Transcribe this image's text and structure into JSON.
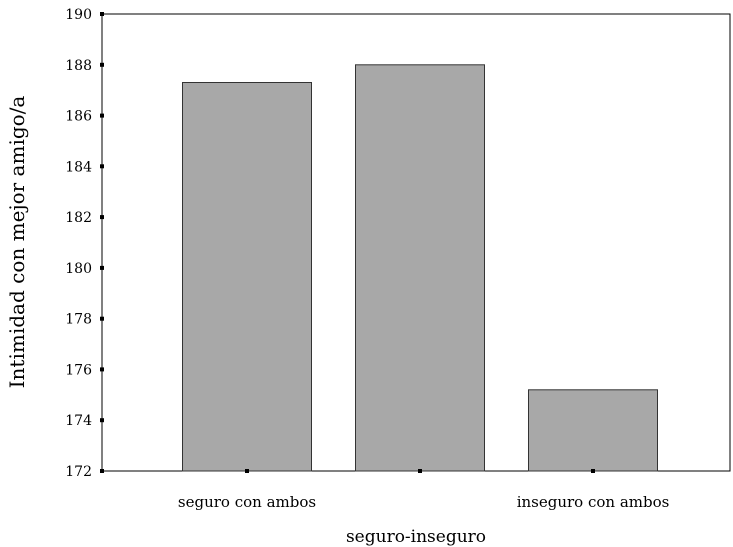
{
  "chart_data": {
    "type": "bar",
    "title": "",
    "xlabel": "seguro-inseguro",
    "ylabel": "Intimidad con mejor amigo/a",
    "categories": [
      "seguro con ambos",
      "",
      "inseguro con ambos"
    ],
    "values": [
      187.3,
      188.0,
      175.2
    ],
    "ylim": [
      172,
      190
    ],
    "yticks": [
      "172",
      "174",
      "176",
      "178",
      "180",
      "182",
      "184",
      "186",
      "188",
      "190"
    ],
    "grid": false,
    "legend": "none",
    "colors": {
      "bar_fill": "#a8a8a8",
      "bar_stroke": "#333333",
      "axis": "#000000"
    }
  }
}
